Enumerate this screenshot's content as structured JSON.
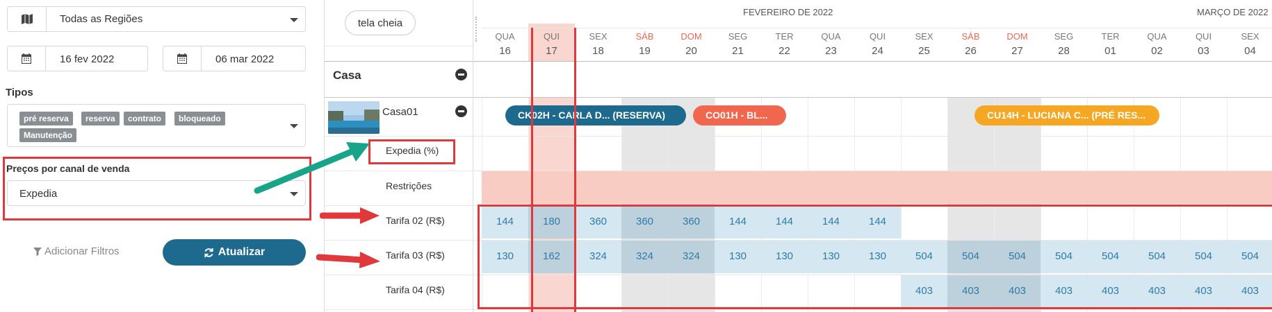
{
  "filters": {
    "region": "Todas as Regiões",
    "date_from": "16 fev 2022",
    "date_to": "06 mar 2022",
    "types_label": "Tipos",
    "types": [
      "pré reserva",
      "reserva",
      "contrato",
      "bloqueado",
      "Manutenção"
    ],
    "channel_label": "Preços por canal de venda",
    "channel_value": "Expedia",
    "add_filters": "Adicionar Filtros",
    "update_button": "Atualizar"
  },
  "calendar": {
    "fullscreen_button": "tela cheia",
    "months": [
      "FEVEREIRO DE 2022",
      "MARÇO DE 2022"
    ],
    "days": [
      {
        "w": "QUA",
        "n": "16"
      },
      {
        "w": "QUI",
        "n": "17"
      },
      {
        "w": "SEX",
        "n": "18"
      },
      {
        "w": "SÁB",
        "n": "19"
      },
      {
        "w": "DOM",
        "n": "20"
      },
      {
        "w": "SEG",
        "n": "21"
      },
      {
        "w": "TER",
        "n": "22"
      },
      {
        "w": "QUA",
        "n": "23"
      },
      {
        "w": "QUI",
        "n": "24"
      },
      {
        "w": "SEX",
        "n": "25"
      },
      {
        "w": "SÁB",
        "n": "26"
      },
      {
        "w": "DOM",
        "n": "27"
      },
      {
        "w": "SEG",
        "n": "28"
      },
      {
        "w": "TER",
        "n": "01"
      },
      {
        "w": "QUA",
        "n": "02"
      },
      {
        "w": "QUI",
        "n": "03"
      },
      {
        "w": "SEX",
        "n": "04"
      }
    ],
    "property": "Casa",
    "room": "Casa01",
    "rows": {
      "expedia": "Expedia (%)",
      "restricoes": "Restrições",
      "tarifa02": "Tarifa 02 (R$)",
      "tarifa03": "Tarifa 03 (R$)",
      "tarifa04": "Tarifa 04 (R$)"
    },
    "rates": {
      "tarifa02": [
        "144",
        "180",
        "360",
        "360",
        "360",
        "144",
        "144",
        "144",
        "144",
        "",
        "",
        "",
        "",
        "",
        "",
        "",
        ""
      ],
      "tarifa03": [
        "130",
        "162",
        "324",
        "324",
        "324",
        "130",
        "130",
        "130",
        "130",
        "504",
        "504",
        "504",
        "504",
        "504",
        "504",
        "504",
        "504"
      ],
      "tarifa04": [
        "",
        "",
        "",
        "",
        "",
        "",
        "",
        "",
        "",
        "403",
        "403",
        "403",
        "403",
        "403",
        "403",
        "403",
        "403"
      ]
    },
    "bookings": [
      {
        "label": "CK02H - CARLA D... (RESERVA)",
        "color": "#1d6a8e"
      },
      {
        "label": "CO01H - BL...",
        "color": "#f0674e"
      },
      {
        "label": "CU14H - LUCIANA C... (PRÉ RES...",
        "color": "#f5a623"
      }
    ]
  }
}
